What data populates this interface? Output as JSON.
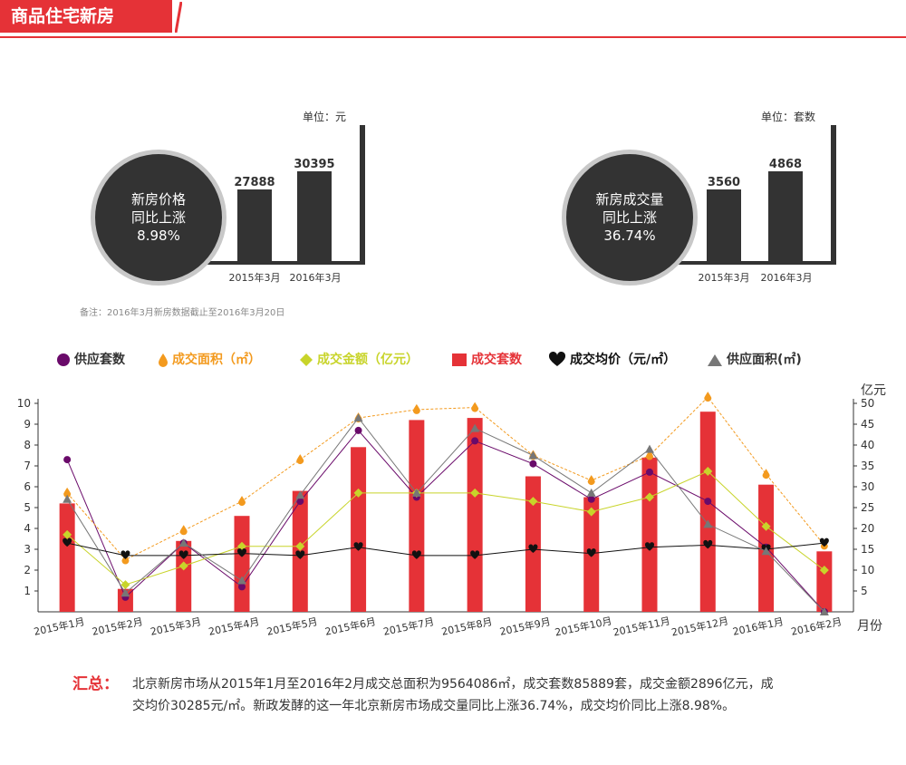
{
  "header": {
    "title": "商品住宅新房"
  },
  "price_panel": {
    "unit": "单位：元",
    "badge_line1": "新房价格",
    "badge_line2": "同比上涨",
    "badge_line3": "8.98%",
    "bars": [
      {
        "label": "2015年3月",
        "value_text": "27888",
        "value": 27888
      },
      {
        "label": "2016年3月",
        "value_text": "30395",
        "value": 30395
      }
    ]
  },
  "volume_panel": {
    "unit": "单位：套数",
    "badge_line1": "新房成交量",
    "badge_line2": "同比上涨",
    "badge_line3": "36.74%",
    "bars": [
      {
        "label": "2015年3月",
        "value_text": "3560",
        "value": 3560
      },
      {
        "label": "2016年3月",
        "value_text": "4868",
        "value": 4868
      }
    ]
  },
  "note": "备注：2016年3月新房数据截止至2016年3月20日",
  "legend": [
    {
      "label": "供应套数",
      "icon": "circle",
      "color": "#6a0a6a"
    },
    {
      "label": "成交面积（㎡）",
      "icon": "drop",
      "color": "#f39a1e"
    },
    {
      "label": "成交金额（亿元）",
      "icon": "diamond",
      "color": "#c8d42a"
    },
    {
      "label": "成交套数",
      "icon": "square",
      "color": "#e53237"
    },
    {
      "label": "成交均价（元/㎡）",
      "icon": "heart",
      "color": "#111111"
    },
    {
      "label": "供应面积(㎡)",
      "icon": "triangle",
      "color": "#777777"
    }
  ],
  "chart_data": {
    "type": "bar",
    "categories": [
      "2015年1月",
      "2015年2月",
      "2015年3月",
      "2015年4月",
      "2015年5月",
      "2015年6月",
      "2015年7月",
      "2015年8月",
      "2015年9月",
      "2015年10月",
      "2015年11月",
      "2015年12月",
      "2016年1月",
      "2016年2月"
    ],
    "xlabel": "月份",
    "ylabel_right": "亿元",
    "yleft_ticks": [
      1,
      2,
      3,
      4,
      5,
      6,
      7,
      8,
      9,
      10
    ],
    "yleft_lim": [
      0,
      10
    ],
    "yright_ticks": [
      5,
      10,
      15,
      20,
      25,
      30,
      35,
      40,
      45,
      50
    ],
    "yright_lim": [
      0,
      50
    ],
    "series": [
      {
        "name": "成交套数",
        "kind": "bar",
        "axis": "left",
        "color": "#e53237",
        "values": [
          5.2,
          1.1,
          3.4,
          4.6,
          5.8,
          7.9,
          9.2,
          9.3,
          6.5,
          5.5,
          7.4,
          9.6,
          6.1,
          2.9
        ]
      },
      {
        "name": "供应套数",
        "kind": "line",
        "axis": "left",
        "marker": "circle",
        "color": "#6a0a6a",
        "values": [
          7.3,
          0.7,
          3.3,
          1.2,
          5.3,
          8.7,
          5.5,
          8.2,
          7.1,
          5.4,
          6.7,
          5.3,
          3.1,
          0
        ]
      },
      {
        "name": "成交面积（㎡）",
        "kind": "line",
        "axis": "left",
        "marker": "drop",
        "color": "#f39a1e",
        "values": [
          5.7,
          2.5,
          3.9,
          5.3,
          7.3,
          9.3,
          9.7,
          9.8,
          7.5,
          6.3,
          7.5,
          10.3,
          6.6,
          3.2
        ]
      },
      {
        "name": "成交金额（亿元）",
        "kind": "line",
        "axis": "right",
        "marker": "diamond",
        "color": "#c8d42a",
        "values": [
          18.5,
          6.5,
          11,
          15.7,
          15.7,
          28.5,
          28.5,
          28.5,
          26.5,
          24,
          27.5,
          33.7,
          20.5,
          10
        ]
      },
      {
        "name": "成交均价（元/㎡）",
        "kind": "line",
        "axis": "left",
        "marker": "heart",
        "color": "#111111",
        "values": [
          3.3,
          2.7,
          2.7,
          2.8,
          2.7,
          3.1,
          2.7,
          2.7,
          3.0,
          2.8,
          3.1,
          3.2,
          3.0,
          3.3
        ]
      },
      {
        "name": "供应面积(㎡)",
        "kind": "line",
        "axis": "left",
        "marker": "triangle",
        "color": "#777777",
        "values": [
          5.4,
          0.9,
          3.3,
          1.5,
          5.6,
          9.3,
          5.7,
          8.8,
          7.5,
          5.7,
          7.8,
          4.2,
          2.9,
          0
        ]
      }
    ]
  },
  "summary": {
    "title": "汇总：",
    "text": "北京新房市场从2015年1月至2016年2月成交总面积为9564086㎡，成交套数85889套，成交金额2896亿元，成交均价30285元/㎡。新政发酵的这一年北京新房市场成交量同比上涨36.74%，成交均价同比上涨8.98%。"
  }
}
